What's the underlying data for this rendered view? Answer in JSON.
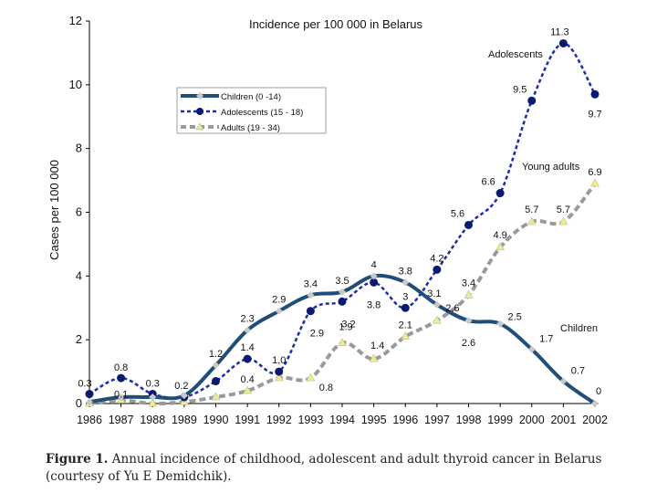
{
  "chart_data": {
    "type": "line",
    "title": "Incidence per 100 000 in Belarus",
    "ylabel": "Cases per 100 000",
    "xlabel": "",
    "ylim": [
      0,
      12
    ],
    "yticks": [
      0,
      2,
      4,
      6,
      8,
      10,
      12
    ],
    "categories": [
      "1986",
      "1987",
      "1988",
      "1989",
      "1990",
      "1991",
      "1992",
      "1993",
      "1994",
      "1995",
      "1996",
      "1997",
      "1998",
      "1999",
      "2000",
      "2001",
      "2002"
    ],
    "series": [
      {
        "name": "Children  (0 -14)",
        "color": "#1f4e79",
        "marker": "diamond",
        "marker_color": "#c8c8c8",
        "values": [
          0.05,
          0.2,
          0.2,
          0.25,
          1.2,
          2.3,
          2.9,
          3.4,
          3.5,
          4.0,
          3.8,
          3.1,
          2.6,
          2.5,
          1.7,
          0.7,
          0.0
        ],
        "labels": [
          "",
          "",
          "",
          "",
          "1.2",
          "2.3",
          "2.9",
          "3.4",
          "3.5",
          "4",
          "3.8",
          "3.1",
          "2.6",
          "2.5",
          "1.7",
          "0.7",
          "0"
        ]
      },
      {
        "name": "Adolescents (15 - 18)",
        "color": "#1c2bb0",
        "marker": "circle",
        "marker_color": "#0a1a6e",
        "values": [
          0.3,
          0.8,
          0.3,
          0.2,
          0.7,
          1.4,
          1.0,
          2.9,
          3.2,
          3.8,
          3.0,
          4.2,
          5.6,
          6.6,
          9.5,
          11.3,
          9.7
        ],
        "labels": [
          "0.3",
          "0.8",
          "0.3",
          "0.2",
          "",
          "1.4",
          "1,0",
          "2.9",
          "3.2",
          "3.8",
          "3",
          "4.2",
          "5.6",
          "6.6",
          "9.5",
          "11.3",
          "9.7"
        ]
      },
      {
        "name": "Adults (19 - 34)",
        "color": "#9a9a9a",
        "marker": "triangle",
        "marker_color": "#f0ec8a",
        "values": [
          0.0,
          0.1,
          0.0,
          0.05,
          0.2,
          0.4,
          0.8,
          0.8,
          1.9,
          1.4,
          2.1,
          2.6,
          3.4,
          4.9,
          5.7,
          5.7,
          6.9
        ],
        "labels": [
          "",
          "0.1",
          "",
          "",
          "",
          "0.4",
          "",
          "0.8",
          "1.9",
          "1.4",
          "2.1",
          "2.6",
          "3.4",
          "4.9",
          "5.7",
          "5.7",
          "6.9"
        ]
      }
    ],
    "annotations": [
      "Adolescents",
      "Young adults",
      "Children"
    ],
    "legend": "upper-left inside plot"
  },
  "caption": {
    "label": "Figure 1.",
    "text": " Annual incidence of childhood, adolescent and adult thyroid cancer in Belarus (courtesy of Yu E Demidchik)."
  }
}
